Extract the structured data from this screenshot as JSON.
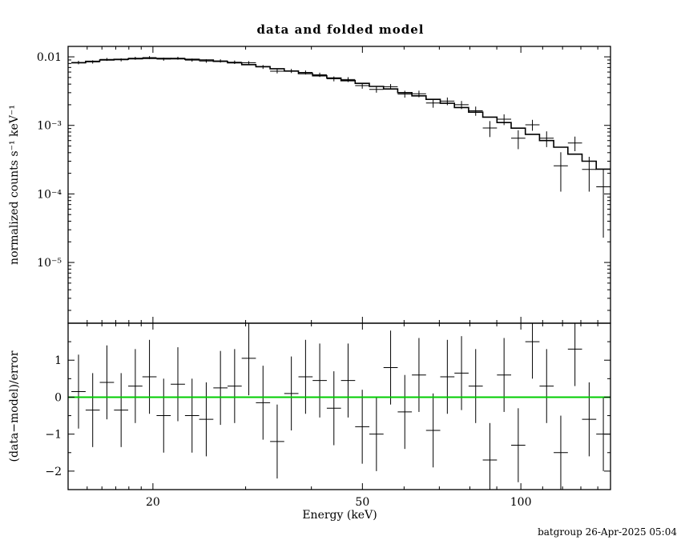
{
  "title": "data and folded model",
  "footer": "batgroup 26-Apr-2025 05:04",
  "colors": {
    "foreground": "#000000",
    "background": "#ffffff",
    "zero_line": "#00cc00"
  },
  "chart_data": {
    "type": "line",
    "title": "data and folded model",
    "xlabel": "Energy (keV)",
    "ylabel_top": "normalized counts s⁻¹ keV⁻¹",
    "ylabel_bottom": "(data−model)/error",
    "x_scale": "log",
    "x_range": [
      13.8,
      148
    ],
    "x_major_ticks": [
      20,
      50,
      100
    ],
    "x_major_tick_labels": [
      "20",
      "50",
      "100"
    ],
    "x_minor_ticks": [
      15,
      16,
      17,
      18,
      19,
      30,
      40,
      60,
      70,
      80,
      90,
      110,
      120,
      130,
      140
    ],
    "top_panel": {
      "y_scale": "log",
      "y_range": [
        1.3e-06,
        0.0142
      ],
      "y_major_ticks": [
        0.01,
        0.001,
        0.0001,
        1e-05
      ],
      "y_major_tick_labels": [
        "0.01",
        "10⁻³",
        "10⁻⁴",
        "10⁻⁵"
      ],
      "grid": false
    },
    "bottom_panel": {
      "y_scale": "linear",
      "y_range": [
        -2.5,
        2.0
      ],
      "y_major_ticks": [
        1,
        0,
        -1,
        -2
      ],
      "y_major_tick_labels": [
        "1",
        "0",
        "−1",
        "−2"
      ],
      "y_minor_step": 0.5,
      "zero_line_color": "#00cc00",
      "grid": false
    },
    "bin_edges_keV": [
      14.0,
      14.9,
      15.85,
      16.87,
      17.95,
      19.1,
      20.32,
      21.62,
      23.01,
      24.48,
      26.05,
      27.72,
      29.49,
      31.38,
      33.39,
      35.52,
      37.8,
      40.22,
      42.79,
      45.53,
      48.44,
      51.54,
      54.84,
      58.35,
      62.08,
      66.05,
      70.28,
      74.78,
      79.56,
      84.65,
      90.07,
      95.84,
      101.97,
      108.5,
      115.44,
      122.83,
      130.69,
      139.06,
      147.96
    ],
    "series": [
      {
        "name": "folded model",
        "style": "step-histogram",
        "values": [
          0.0082,
          0.0086,
          0.009,
          0.0092,
          0.0094,
          0.0095,
          0.0095,
          0.0094,
          0.0092,
          0.009,
          0.0086,
          0.0082,
          0.0077,
          0.0072,
          0.0067,
          0.0062,
          0.0057,
          0.0053,
          0.0049,
          0.0045,
          0.0041,
          0.0037,
          0.0034,
          0.003,
          0.0027,
          0.0024,
          0.0021,
          0.00182,
          0.00156,
          0.00132,
          0.0011,
          0.00091,
          0.00074,
          0.0006,
          0.00048,
          0.00038,
          0.0003,
          0.00023
        ]
      },
      {
        "name": "data",
        "style": "cross-errorbars",
        "values": [
          0.00827,
          0.00843,
          0.00918,
          0.00904,
          0.00954,
          0.00976,
          0.00926,
          0.00956,
          0.00897,
          0.0087,
          0.00872,
          0.00835,
          0.00819,
          0.00713,
          0.00618,
          0.00624,
          0.00592,
          0.00548,
          0.00478,
          0.00467,
          0.0038,
          0.00335,
          0.00367,
          0.00287,
          0.00289,
          0.00212,
          0.00226,
          0.002,
          0.00163,
          0.000916,
          0.00123,
          0.00065,
          0.00102,
          0.00065,
          0.000257,
          0.000553,
          0.000228,
          0.000127
        ],
        "errors": [
          0.00049,
          0.00047,
          0.00045,
          0.00046,
          0.00047,
          0.00048,
          0.00048,
          0.00047,
          0.00046,
          0.0005,
          0.00047,
          0.00049,
          0.00046,
          0.00047,
          0.00044,
          0.00043,
          0.0004,
          0.0004,
          0.00039,
          0.00038,
          0.00037,
          0.00035,
          0.00034,
          0.00033,
          0.00032,
          0.00031,
          0.00029,
          0.00027,
          0.00025,
          0.00024,
          0.00022,
          0.0002,
          0.000185,
          0.000168,
          0.000149,
          0.000133,
          0.00012,
          0.000104
        ]
      },
      {
        "name": "residuals (data−model)/error",
        "style": "cross-errorbars",
        "values": [
          0.15,
          -0.35,
          0.4,
          -0.35,
          0.3,
          0.55,
          -0.5,
          0.35,
          -0.5,
          -0.6,
          0.25,
          0.3,
          1.05,
          -0.15,
          -1.2,
          0.1,
          0.55,
          0.45,
          -0.3,
          0.45,
          -0.8,
          -1.0,
          0.8,
          -0.4,
          0.6,
          -0.9,
          0.55,
          0.65,
          0.3,
          -1.7,
          0.6,
          -1.3,
          1.5,
          0.3,
          -1.5,
          1.3,
          -0.6,
          -1.0
        ],
        "error": 1.0
      }
    ]
  }
}
